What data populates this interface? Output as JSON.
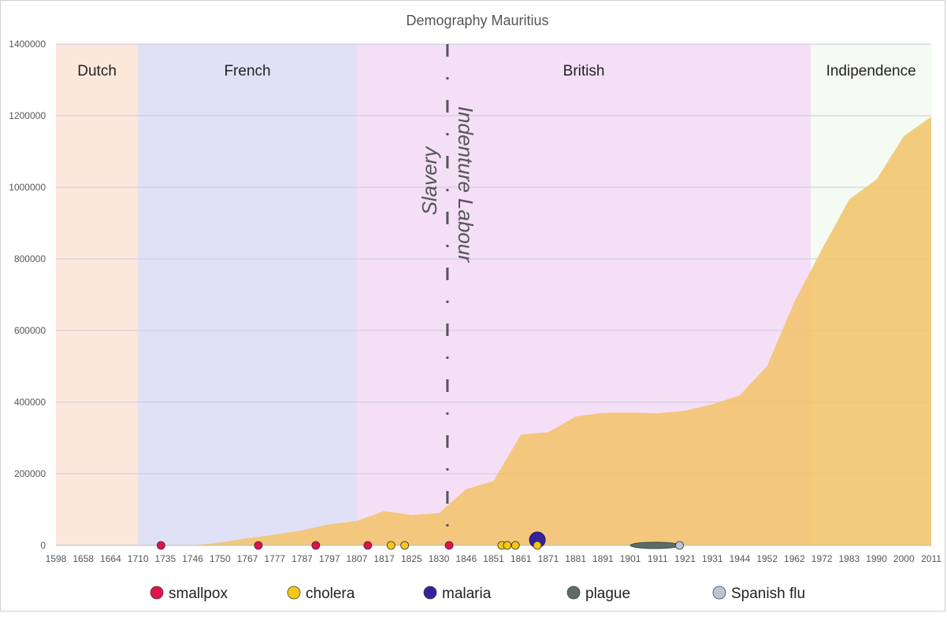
{
  "chart_data": {
    "type": "area",
    "title": "Demography Mauritius",
    "x": [
      "1598",
      "1658",
      "1664",
      "1710",
      "1735",
      "1746",
      "1750",
      "1767",
      "1777",
      "1787",
      "1797",
      "1807",
      "1817",
      "1825",
      "1830",
      "1846",
      "1851",
      "1861",
      "1871",
      "1881",
      "1891",
      "1901",
      "1911",
      "1921",
      "1931",
      "1944",
      "1952",
      "1962",
      "1972",
      "1983",
      "1990",
      "2000",
      "2011"
    ],
    "series": [
      {
        "values": [
          0,
          0,
          0,
          0,
          0,
          0,
          8000,
          20000,
          30000,
          42000,
          59000,
          68000,
          96000,
          85000,
          90000,
          157000,
          180000,
          310000,
          316000,
          360000,
          370000,
          371000,
          369000,
          376000,
          394000,
          419000,
          501000,
          681000,
          826000,
          966000,
          1022000,
          1143000,
          1197000
        ]
      }
    ],
    "ylim": [
      0,
      1400000
    ],
    "yticks": [
      "0",
      "200000",
      "400000",
      "600000",
      "800000",
      "1000000",
      "1200000",
      "1400000"
    ],
    "grid": true,
    "eras": [
      {
        "name": "Dutch",
        "from": "1598",
        "to": "1710",
        "color": "#fbe8db"
      },
      {
        "name": "French",
        "from": "1710",
        "to": "1807",
        "color": "#e0e1f6"
      },
      {
        "name": "British",
        "from": "1807",
        "to": "1968",
        "color": "#f5dff6"
      },
      {
        "name": "Indipendence",
        "from": "1968",
        "to": "2011",
        "color": "#f4fbf2"
      }
    ],
    "dotted_split": {
      "at": "1835",
      "left_label": "Slavery",
      "right_label": "Indenture Labour"
    },
    "epidemics": [
      {
        "type": "smallpox",
        "year": 1731,
        "size": 1
      },
      {
        "type": "smallpox",
        "year": 1771,
        "size": 1
      },
      {
        "type": "smallpox",
        "year": 1792,
        "size": 1
      },
      {
        "type": "smallpox",
        "year": 1811,
        "size": 1
      },
      {
        "type": "cholera",
        "year": 1819,
        "size": 1
      },
      {
        "type": "cholera",
        "year": 1823,
        "size": 1
      },
      {
        "type": "smallpox",
        "year": 1836,
        "size": 1
      },
      {
        "type": "cholera",
        "year": 1854,
        "size": 1
      },
      {
        "type": "cholera",
        "year": 1856,
        "size": 1
      },
      {
        "type": "cholera",
        "year": 1859,
        "size": 1
      },
      {
        "type": "malaria",
        "year": 1867,
        "size": 2
      },
      {
        "type": "cholera",
        "year": 1867,
        "size": 1
      },
      {
        "type": "plague",
        "year": 1910,
        "size": 1,
        "until": 1919
      },
      {
        "type": "Spanish flu",
        "year": 1919,
        "size": 1
      }
    ],
    "legend_position": "bottom",
    "legend": [
      {
        "name": "smallpox",
        "color": "#e0134c"
      },
      {
        "name": "cholera",
        "color": "#f7c614"
      },
      {
        "name": "malaria",
        "color": "#36219d"
      },
      {
        "name": "plague",
        "color": "#5b6d69"
      },
      {
        "name": "Spanish flu",
        "color": "#b8c7d6"
      }
    ],
    "colors": {
      "area_fill": "#f2c46c",
      "area_fill_opacity": 0.88,
      "grid": "#c8c8d8",
      "axis_text": "#555555",
      "title_text": "#555555",
      "divider": "#555555"
    }
  }
}
